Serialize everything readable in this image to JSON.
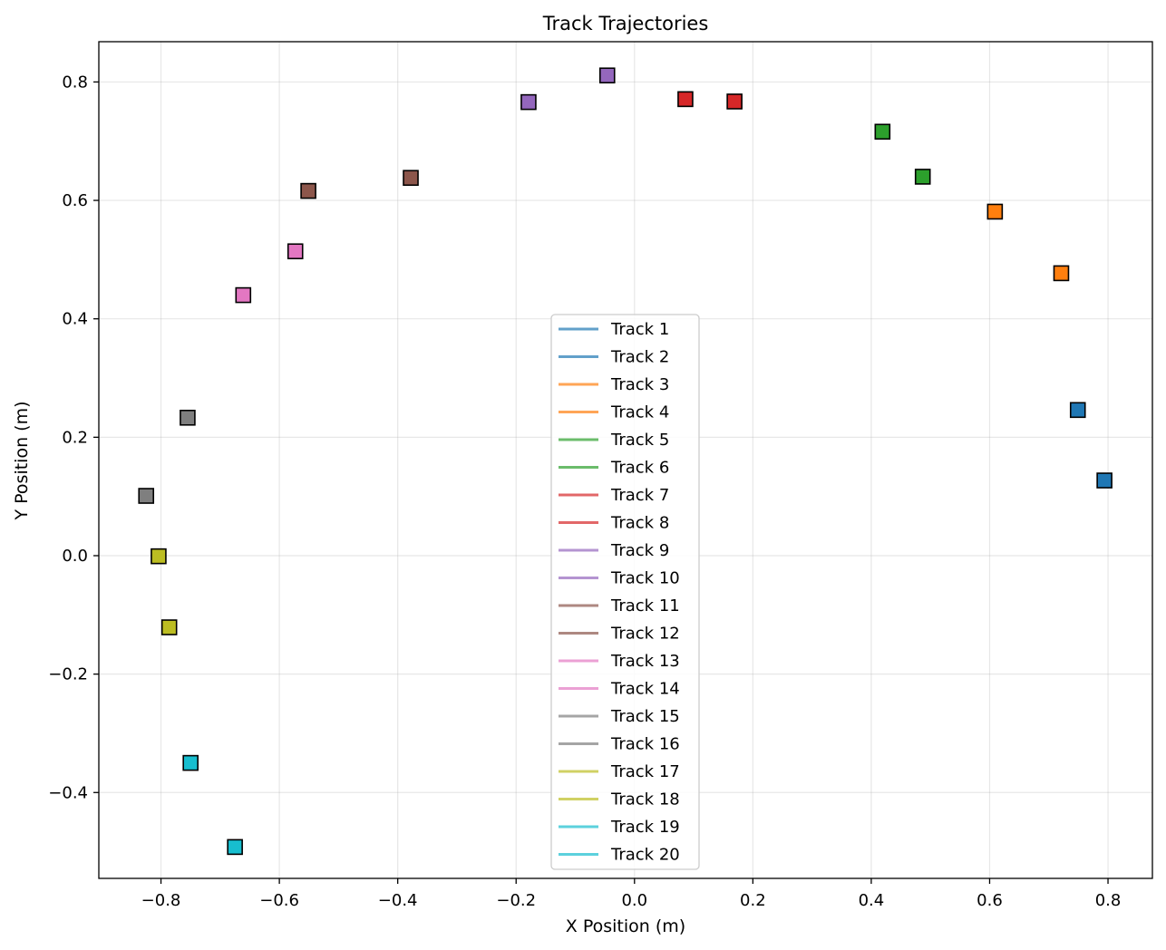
{
  "chart_data": {
    "type": "scatter",
    "title": "Track Trajectories",
    "xlabel": "X Position (m)",
    "ylabel": "Y Position (m)",
    "xlim": [
      -0.905,
      0.875
    ],
    "ylim": [
      -0.545,
      0.868
    ],
    "xticks": [
      -0.8,
      -0.6,
      -0.4,
      -0.2,
      0.0,
      0.2,
      0.4,
      0.6,
      0.8
    ],
    "xtick_labels": [
      "−0.8",
      "−0.6",
      "−0.4",
      "−0.2",
      "0.0",
      "0.2",
      "0.4",
      "0.6",
      "0.8"
    ],
    "yticks": [
      -0.4,
      -0.2,
      0.0,
      0.2,
      0.4,
      0.6,
      0.8
    ],
    "ytick_labels": [
      "−0.4",
      "−0.2",
      "0.0",
      "0.2",
      "0.4",
      "0.6",
      "0.8"
    ],
    "grid": true,
    "legend_position": "lower-center",
    "marker": "square",
    "series": [
      {
        "name": "Track 1",
        "color": "#1f77b4",
        "x": [
          0.794
        ],
        "y": [
          0.127
        ]
      },
      {
        "name": "Track 2",
        "color": "#1f77b4",
        "x": [
          0.749
        ],
        "y": [
          0.246
        ]
      },
      {
        "name": "Track 3",
        "color": "#ff7f0e",
        "x": [
          0.721
        ],
        "y": [
          0.477
        ]
      },
      {
        "name": "Track 4",
        "color": "#ff7f0e",
        "x": [
          0.609
        ],
        "y": [
          0.581
        ]
      },
      {
        "name": "Track 5",
        "color": "#2ca02c",
        "x": [
          0.487
        ],
        "y": [
          0.64
        ]
      },
      {
        "name": "Track 6",
        "color": "#2ca02c",
        "x": [
          0.419
        ],
        "y": [
          0.716
        ]
      },
      {
        "name": "Track 7",
        "color": "#d62728",
        "x": [
          0.169
        ],
        "y": [
          0.767
        ]
      },
      {
        "name": "Track 8",
        "color": "#d62728",
        "x": [
          0.086
        ],
        "y": [
          0.771
        ]
      },
      {
        "name": "Track 9",
        "color": "#9467bd",
        "x": [
          -0.046
        ],
        "y": [
          0.811
        ]
      },
      {
        "name": "Track 10",
        "color": "#9467bd",
        "x": [
          -0.179
        ],
        "y": [
          0.766
        ]
      },
      {
        "name": "Track 11",
        "color": "#8c564b",
        "x": [
          -0.378
        ],
        "y": [
          0.638
        ]
      },
      {
        "name": "Track 12",
        "color": "#8c564b",
        "x": [
          -0.551
        ],
        "y": [
          0.616
        ]
      },
      {
        "name": "Track 13",
        "color": "#e377c2",
        "x": [
          -0.573
        ],
        "y": [
          0.514
        ]
      },
      {
        "name": "Track 14",
        "color": "#e377c2",
        "x": [
          -0.661
        ],
        "y": [
          0.44
        ]
      },
      {
        "name": "Track 15",
        "color": "#7f7f7f",
        "x": [
          -0.755
        ],
        "y": [
          0.233
        ]
      },
      {
        "name": "Track 16",
        "color": "#7f7f7f",
        "x": [
          -0.825
        ],
        "y": [
          0.101
        ]
      },
      {
        "name": "Track 17",
        "color": "#bcbd22",
        "x": [
          -0.804
        ],
        "y": [
          -0.001
        ]
      },
      {
        "name": "Track 18",
        "color": "#bcbd22",
        "x": [
          -0.786
        ],
        "y": [
          -0.121
        ]
      },
      {
        "name": "Track 19",
        "color": "#17becf",
        "x": [
          -0.75
        ],
        "y": [
          -0.35
        ]
      },
      {
        "name": "Track 20",
        "color": "#17becf",
        "x": [
          -0.675
        ],
        "y": [
          -0.492
        ]
      }
    ]
  }
}
